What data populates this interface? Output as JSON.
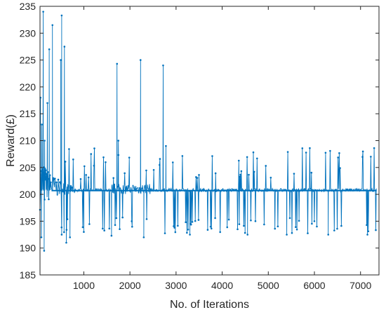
{
  "chart_data": {
    "type": "line",
    "title": "",
    "xlabel": "No. of Iterations",
    "ylabel": "Reward(£)",
    "xlim": [
      50,
      7400
    ],
    "ylim": [
      185,
      235
    ],
    "xticks": [
      1000,
      2000,
      3000,
      4000,
      5000,
      6000,
      7000
    ],
    "yticks": [
      185,
      190,
      195,
      200,
      205,
      210,
      215,
      220,
      225,
      230,
      235
    ],
    "grid": false,
    "legend": "none",
    "baseline": 200.7,
    "series": [
      {
        "color": "#0072BD",
        "marker": "dot",
        "x_range": [
          50,
          7350
        ],
        "peaks": [
          {
            "x": 60,
            "y": 218
          },
          {
            "x": 90,
            "y": 213
          },
          {
            "x": 120,
            "y": 234
          },
          {
            "x": 150,
            "y": 210
          },
          {
            "x": 210,
            "y": 217
          },
          {
            "x": 250,
            "y": 227
          },
          {
            "x": 320,
            "y": 231.5
          },
          {
            "x": 500,
            "y": 225
          },
          {
            "x": 520,
            "y": 233.3
          },
          {
            "x": 580,
            "y": 227.5
          },
          {
            "x": 1720,
            "y": 224.3
          },
          {
            "x": 2230,
            "y": 225
          },
          {
            "x": 2720,
            "y": 224
          },
          {
            "x": 1750,
            "y": 210
          },
          {
            "x": 2780,
            "y": 209
          }
        ],
        "dips": [
          {
            "x": 80,
            "y": 192
          },
          {
            "x": 140,
            "y": 189.5
          },
          {
            "x": 520,
            "y": 192.5
          },
          {
            "x": 620,
            "y": 191
          },
          {
            "x": 700,
            "y": 192
          },
          {
            "x": 1000,
            "y": 193
          },
          {
            "x": 1600,
            "y": 192.3
          },
          {
            "x": 2300,
            "y": 192
          },
          {
            "x": 3300,
            "y": 192.5
          },
          {
            "x": 4550,
            "y": 192.5
          },
          {
            "x": 5400,
            "y": 192.5
          },
          {
            "x": 6300,
            "y": 192.5
          },
          {
            "x": 7150,
            "y": 192.5
          }
        ]
      }
    ]
  }
}
